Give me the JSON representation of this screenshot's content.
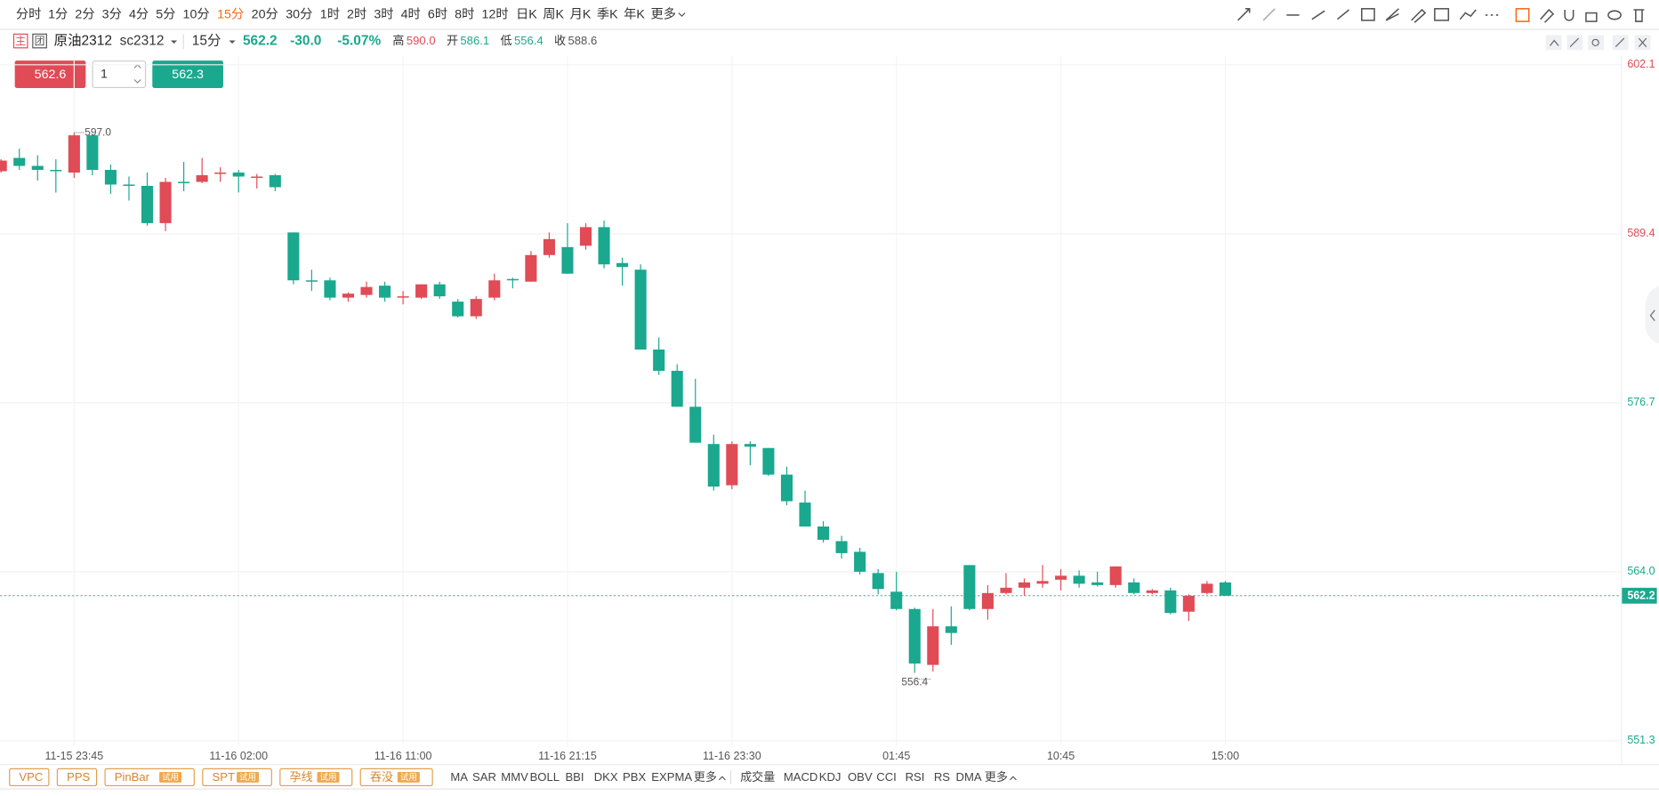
{
  "toolbar": {
    "periods": [
      "分时",
      "1分",
      "2分",
      "3分",
      "4分",
      "5分",
      "10分",
      "15分",
      "20分",
      "30分",
      "1时",
      "2时",
      "3时",
      "4时",
      "6时",
      "8时",
      "12时",
      "日K",
      "周K",
      "月K",
      "季K",
      "年K",
      "更多"
    ],
    "active_period": "15分"
  },
  "header": {
    "badges": [
      "主",
      "团"
    ],
    "name": "原油2312",
    "code": "sc2312",
    "period": "15分",
    "price": "562.2",
    "change": "-30.0",
    "change_pct": "-5.07%",
    "stats": [
      {
        "label": "高",
        "value": "590.0"
      },
      {
        "label": "开",
        "value": "586.1"
      },
      {
        "label": "低",
        "value": "556.4"
      },
      {
        "label": "收",
        "value": "588.6"
      }
    ]
  },
  "order": {
    "sell": "562.6",
    "qty": "1",
    "buy": "562.3"
  },
  "bottom": {
    "patterns": [
      {
        "label": "VPC"
      },
      {
        "label": "PPS"
      },
      {
        "label": "PinBar",
        "tag": "试用"
      },
      {
        "label": "SPT",
        "tag": "试用"
      },
      {
        "label": "孕线",
        "tag": "试用"
      },
      {
        "label": "吞没",
        "tag": "试用"
      }
    ],
    "main_indicators": [
      "MA",
      "SAR",
      "MMV",
      "BOLL",
      "BBI",
      "DKX",
      "PBX",
      "EXPMA",
      "更多"
    ],
    "sub_indicators": [
      "成交量",
      "MACD",
      "KDJ",
      "OBV",
      "CCI",
      "RSI",
      "RS",
      "DMA",
      "更多"
    ]
  },
  "chart_data": {
    "type": "candlestick",
    "up_color": "#e04b56",
    "down_color": "#1aa88e",
    "grid": true,
    "categories": [
      null,
      null,
      null,
      null,
      "11-15 23:45",
      null,
      null,
      null,
      null,
      null,
      null,
      null,
      null,
      "11-16 02:00",
      null,
      null,
      null,
      null,
      null,
      null,
      null,
      null,
      "11-16 11:00",
      null,
      null,
      null,
      null,
      null,
      null,
      null,
      null,
      "11-16 21:15",
      null,
      null,
      null,
      null,
      null,
      null,
      null,
      null,
      "11-16 23:30",
      null,
      null,
      null,
      null,
      null,
      null,
      null,
      null,
      "01:45",
      null,
      null,
      null,
      null,
      null,
      null,
      null,
      null,
      "10:45",
      null,
      null,
      null,
      null,
      null,
      null,
      null,
      null,
      "15:00"
    ],
    "open": [
      594.1,
      595.1,
      594.5,
      594.2,
      594.0,
      596.8,
      594.2,
      593.1,
      593.0,
      590.2,
      593.3,
      593.3,
      593.9,
      594.0,
      593.6,
      593.8,
      589.5,
      585.9,
      585.9,
      584.6,
      584.8,
      585.5,
      584.6,
      584.6,
      585.6,
      584.3,
      583.2,
      584.6,
      586.0,
      585.8,
      587.8,
      588.4,
      588.5,
      589.9,
      587.2,
      586.7,
      580.7,
      579.1,
      576.4,
      573.6,
      570.5,
      573.6,
      573.3,
      571.3,
      569.2,
      567.4,
      566.3,
      565.5,
      563.9,
      562.5,
      561.2,
      557.0,
      559.9,
      564.5,
      561.2,
      562.4,
      562.8,
      563.1,
      563.4,
      563.7,
      563.2,
      563.0,
      563.2,
      562.4,
      562.6,
      561.0,
      562.4,
      563.2
    ],
    "high": [
      595.0,
      595.8,
      595.3,
      595.0,
      597.0,
      596.9,
      594.6,
      593.7,
      594.0,
      593.6,
      594.8,
      595.1,
      594.4,
      594.2,
      593.9,
      593.9,
      589.5,
      586.7,
      586.1,
      585.0,
      585.8,
      585.8,
      585.1,
      585.6,
      585.8,
      584.5,
      584.7,
      586.4,
      586.1,
      588.1,
      589.5,
      590.2,
      590.2,
      590.4,
      587.6,
      587.1,
      581.6,
      579.6,
      578.5,
      574.3,
      573.8,
      573.8,
      573.3,
      571.9,
      570.1,
      567.8,
      566.7,
      565.8,
      564.2,
      564.0,
      561.3,
      561.2,
      561.4,
      564.5,
      563.0,
      563.9,
      563.5,
      564.5,
      564.2,
      564.1,
      564.0,
      564.4,
      563.5,
      562.7,
      562.8,
      562.3,
      563.3,
      563.3
    ],
    "low": [
      594.0,
      594.2,
      593.4,
      592.5,
      593.6,
      593.8,
      592.4,
      591.9,
      590.0,
      589.6,
      592.6,
      593.2,
      593.3,
      592.5,
      592.8,
      592.6,
      585.6,
      585.1,
      584.4,
      584.3,
      584.6,
      584.3,
      584.1,
      584.5,
      584.5,
      583.1,
      583.0,
      584.4,
      585.3,
      585.8,
      587.6,
      586.4,
      588.2,
      586.8,
      585.5,
      580.7,
      578.8,
      576.4,
      573.7,
      570.1,
      570.2,
      572.0,
      571.2,
      569.0,
      567.4,
      566.2,
      565.0,
      563.8,
      562.3,
      561.1,
      556.4,
      556.5,
      558.5,
      561.1,
      560.4,
      562.3,
      562.2,
      562.8,
      562.6,
      562.8,
      562.9,
      562.8,
      562.3,
      562.3,
      560.8,
      560.3,
      562.3,
      562.2
    ],
    "close": [
      594.9,
      594.5,
      594.2,
      594.1,
      596.8,
      594.2,
      593.1,
      593.0,
      590.2,
      593.3,
      593.2,
      593.8,
      594.0,
      593.7,
      593.7,
      592.9,
      585.9,
      585.8,
      584.6,
      584.9,
      585.4,
      584.6,
      584.7,
      585.6,
      584.7,
      583.2,
      584.5,
      585.9,
      585.9,
      587.8,
      589.0,
      586.4,
      589.9,
      587.1,
      586.9,
      580.7,
      579.1,
      576.4,
      573.7,
      570.4,
      573.6,
      573.4,
      571.3,
      569.3,
      567.4,
      566.4,
      565.4,
      564.0,
      562.7,
      561.2,
      557.1,
      559.9,
      559.4,
      561.2,
      562.4,
      562.8,
      563.2,
      563.3,
      563.7,
      563.1,
      563.0,
      564.4,
      562.4,
      562.6,
      560.9,
      562.2,
      563.1,
      562.2
    ],
    "ylim": [
      551.3,
      602.1
    ],
    "yticks": [
      602.1,
      589.4,
      576.7,
      {
        "value": 564,
        "label": "564.0"
      },
      551.3
    ],
    "max_label": "597.0",
    "min_label": "556.4",
    "reference_close": 588.6
  }
}
